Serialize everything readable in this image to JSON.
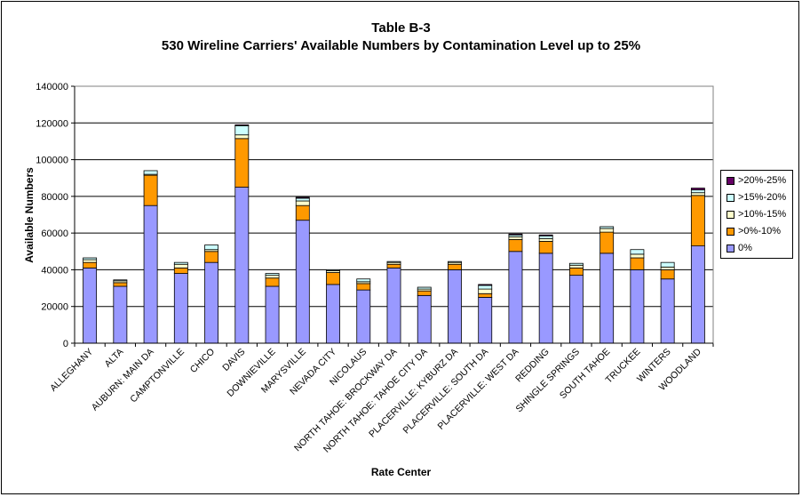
{
  "chart_data": {
    "type": "bar",
    "stacked": true,
    "title": "Table B-3",
    "subtitle": "530 Wireline Carriers' Available Numbers by Contamination Level up to 25%",
    "xlabel": "Rate Center",
    "ylabel": "Available Numbers",
    "ylim": [
      0,
      140000
    ],
    "yticks": [
      "0",
      "20000",
      "40000",
      "60000",
      "80000",
      "100000",
      "120000",
      "140000"
    ],
    "grid": true,
    "legend_position": "right",
    "categories": [
      "ALLEGHANY",
      "ALTA",
      "AUBURN: MAIN DA",
      "CAMPTONVILLE",
      "CHICO",
      "DAVIS",
      "DOWNIEVILLE",
      "MARYSVILLE",
      "NEVADA CITY",
      "NICOLAUS",
      "NORTH TAHOE: BROCKWAY DA",
      "NORTH TAHOE: TAHOE CITY DA",
      "PLACERVILLE: KYBURZ DA",
      "PLACERVILLE: SOUTH DA",
      "PLACERVILLE: WEST DA",
      "REDDING",
      "SHINGLE SPRINGS",
      "SOUTH TAHOE",
      "TRUCKEE",
      "WINTERS",
      "WOODLAND"
    ],
    "series": [
      {
        "name": "0%",
        "color": "#9999ff",
        "values": [
          41000,
          31000,
          75000,
          38000,
          44000,
          85000,
          31000,
          67000,
          32000,
          29000,
          41000,
          26000,
          40000,
          25000,
          50000,
          49000,
          37000,
          49000,
          40000,
          35000,
          53000
        ]
      },
      {
        "name": ">0%-10%",
        "color": "#ff9900",
        "values": [
          3000,
          2000,
          16500,
          3000,
          6000,
          26500,
          4500,
          8000,
          6500,
          3500,
          2000,
          2500,
          3000,
          2000,
          6500,
          6500,
          4000,
          11500,
          6500,
          5000,
          27500
        ]
      },
      {
        "name": ">10%-15%",
        "color": "#ffffcc",
        "values": [
          1500,
          1000,
          500,
          2000,
          1000,
          2000,
          1500,
          2500,
          1000,
          1000,
          1000,
          1000,
          1000,
          2500,
          1500,
          1500,
          1500,
          2000,
          2000,
          1500,
          1500
        ]
      },
      {
        "name": ">15%-20%",
        "color": "#ccffff",
        "values": [
          1000,
          500,
          2000,
          1000,
          2500,
          5000,
          1000,
          1500,
          500,
          1500,
          500,
          1000,
          500,
          2000,
          1000,
          1500,
          1000,
          1000,
          2500,
          2500,
          1500
        ]
      },
      {
        "name": ">20%-25%",
        "color": "#660066",
        "values": [
          0,
          0,
          0,
          0,
          0,
          500,
          0,
          500,
          0,
          0,
          0,
          0,
          0,
          500,
          500,
          500,
          0,
          0,
          0,
          0,
          1000
        ]
      }
    ]
  }
}
